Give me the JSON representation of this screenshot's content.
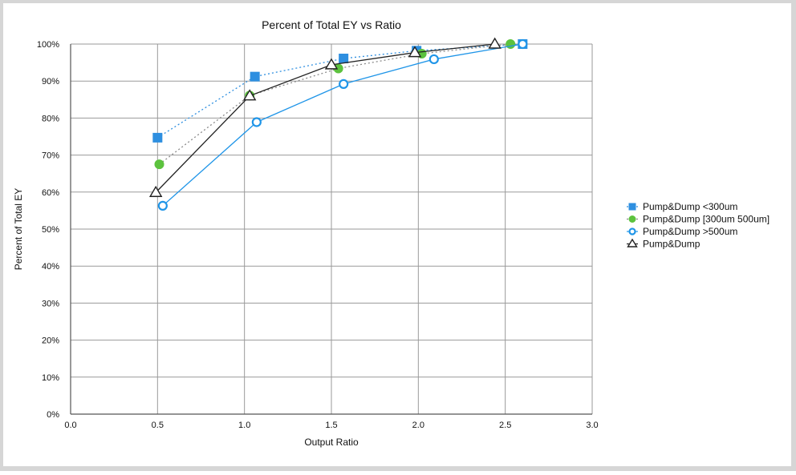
{
  "chart_data": {
    "type": "line",
    "title": "Percent of Total EY vs Ratio",
    "xlabel": "Output Ratio",
    "ylabel": "Percent of Total EY",
    "xlim": [
      0,
      3
    ],
    "ylim": [
      0,
      100
    ],
    "x_ticks": [
      "0.0",
      "0.5",
      "1.0",
      "1.5",
      "2.0",
      "2.5",
      "3.0"
    ],
    "y_ticks": [
      "0%",
      "10%",
      "20%",
      "30%",
      "40%",
      "50%",
      "60%",
      "70%",
      "80%",
      "90%",
      "100%"
    ],
    "grid": true,
    "legend_position": "right",
    "series": [
      {
        "name": "Pump&Dump <300um",
        "marker": "square",
        "line_style": "dotted",
        "color": "#2E8FE0",
        "points": [
          [
            0.5,
            74.7
          ],
          [
            1.06,
            91.2
          ],
          [
            1.57,
            96.1
          ],
          [
            1.99,
            98.2
          ],
          [
            2.6,
            100
          ]
        ]
      },
      {
        "name": "Pump&Dump [300um 500um]",
        "marker": "circle-filled",
        "line_style": "dotted",
        "color": "#5CC23E",
        "line_color": "#8A8A8A",
        "points": [
          [
            0.51,
            67.5
          ],
          [
            1.03,
            86.1
          ],
          [
            1.54,
            93.4
          ],
          [
            2.02,
            97.4
          ],
          [
            2.53,
            100
          ]
        ]
      },
      {
        "name": "Pump&Dump >500um",
        "marker": "circle-open",
        "line_style": "solid",
        "color": "#1F95E8",
        "points": [
          [
            0.53,
            56.3
          ],
          [
            1.07,
            78.9
          ],
          [
            1.57,
            89.2
          ],
          [
            2.09,
            95.9
          ],
          [
            2.6,
            100
          ]
        ]
      },
      {
        "name": "Pump&Dump",
        "marker": "triangle-open",
        "line_style": "solid",
        "color": "#222222",
        "points": [
          [
            0.49,
            59.9
          ],
          [
            1.03,
            86.0
          ],
          [
            1.5,
            94.4
          ],
          [
            1.98,
            97.7
          ],
          [
            2.44,
            100
          ]
        ]
      }
    ]
  }
}
